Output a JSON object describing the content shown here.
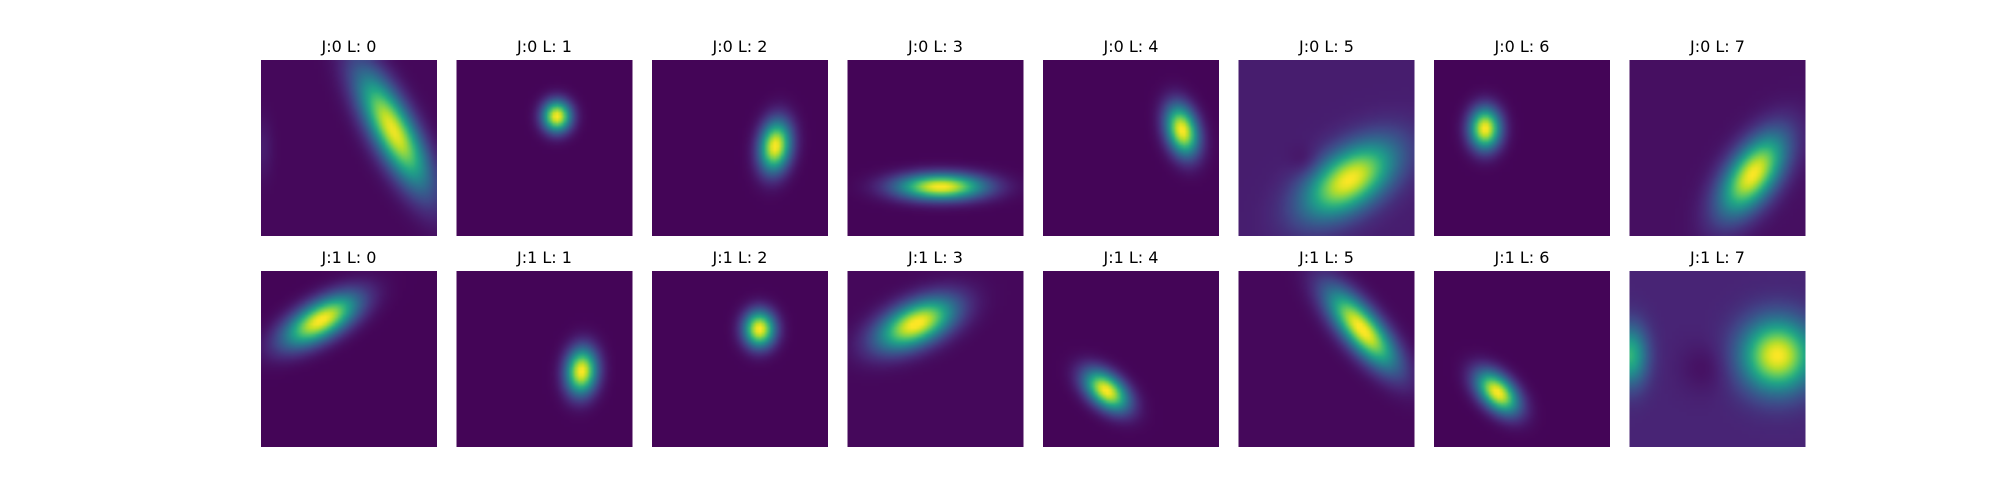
{
  "chart_data": {
    "type": "heatmap",
    "colormap": "viridis",
    "axes_visible": false,
    "rows": 2,
    "cols": 8,
    "panels": [
      {
        "title": "J:0 L: 0",
        "background": 0.02,
        "blobs": [
          {
            "cx": 0.75,
            "cy": 0.4,
            "sx": 0.08,
            "sy": 0.25,
            "angle": -28,
            "amp": 0.96
          },
          {
            "cx": 0.01,
            "cy": 0.5,
            "sx": 0.04,
            "sy": 0.12,
            "angle": 0,
            "amp": 0.06
          }
        ]
      },
      {
        "title": "J:0 L: 1",
        "background": 0.01,
        "blobs": [
          {
            "cx": 0.57,
            "cy": 0.32,
            "sx": 0.055,
            "sy": 0.06,
            "angle": 0,
            "amp": 1.0
          }
        ]
      },
      {
        "title": "J:0 L: 2",
        "background": 0.01,
        "blobs": [
          {
            "cx": 0.7,
            "cy": 0.49,
            "sx": 0.06,
            "sy": 0.1,
            "angle": 8,
            "amp": 1.0
          }
        ]
      },
      {
        "title": "J:0 L: 3",
        "background": 0.01,
        "blobs": [
          {
            "cx": 0.53,
            "cy": 0.72,
            "sx": 0.17,
            "sy": 0.05,
            "angle": 0,
            "amp": 1.0
          }
        ]
      },
      {
        "title": "J:0 L: 4",
        "background": 0.01,
        "blobs": [
          {
            "cx": 0.79,
            "cy": 0.4,
            "sx": 0.06,
            "sy": 0.1,
            "angle": -15,
            "amp": 1.0
          }
        ]
      },
      {
        "title": "J:0 L: 5",
        "background": 0.08,
        "blobs": [
          {
            "cx": 0.63,
            "cy": 0.68,
            "sx": 0.11,
            "sy": 0.2,
            "angle": 55,
            "amp": 0.92
          },
          {
            "cx": 0.38,
            "cy": 0.58,
            "sx": 0.06,
            "sy": 0.06,
            "angle": 0,
            "amp": -0.06
          }
        ]
      },
      {
        "title": "J:0 L: 6",
        "background": 0.01,
        "blobs": [
          {
            "cx": 0.29,
            "cy": 0.39,
            "sx": 0.06,
            "sy": 0.08,
            "angle": 0,
            "amp": 1.0
          }
        ]
      },
      {
        "title": "J:0 L: 7",
        "background": 0.04,
        "blobs": [
          {
            "cx": 0.7,
            "cy": 0.65,
            "sx": 0.09,
            "sy": 0.18,
            "angle": 35,
            "amp": 0.96
          }
        ]
      },
      {
        "title": "J:1 L: 0",
        "background": 0.01,
        "blobs": [
          {
            "cx": 0.34,
            "cy": 0.28,
            "sx": 0.07,
            "sy": 0.16,
            "angle": 60,
            "amp": 1.0
          }
        ]
      },
      {
        "title": "J:1 L: 1",
        "background": 0.01,
        "blobs": [
          {
            "cx": 0.71,
            "cy": 0.57,
            "sx": 0.06,
            "sy": 0.09,
            "angle": 5,
            "amp": 1.0
          }
        ]
      },
      {
        "title": "J:1 L: 2",
        "background": 0.01,
        "blobs": [
          {
            "cx": 0.61,
            "cy": 0.33,
            "sx": 0.06,
            "sy": 0.07,
            "angle": 0,
            "amp": 1.0
          }
        ]
      },
      {
        "title": "J:1 L: 3",
        "background": 0.02,
        "blobs": [
          {
            "cx": 0.39,
            "cy": 0.3,
            "sx": 0.08,
            "sy": 0.16,
            "angle": 65,
            "amp": 1.0
          }
        ]
      },
      {
        "title": "J:1 L: 4",
        "background": 0.01,
        "blobs": [
          {
            "cx": 0.36,
            "cy": 0.68,
            "sx": 0.06,
            "sy": 0.1,
            "angle": -50,
            "amp": 1.0
          }
        ]
      },
      {
        "title": "J:1 L: 5",
        "background": 0.02,
        "blobs": [
          {
            "cx": 0.7,
            "cy": 0.33,
            "sx": 0.07,
            "sy": 0.19,
            "angle": -40,
            "amp": 1.0
          }
        ]
      },
      {
        "title": "J:1 L: 6",
        "background": 0.01,
        "blobs": [
          {
            "cx": 0.36,
            "cy": 0.69,
            "sx": 0.06,
            "sy": 0.1,
            "angle": -45,
            "amp": 1.0
          }
        ]
      },
      {
        "title": "J:1 L: 7",
        "background": 0.1,
        "blobs": [
          {
            "cx": 0.84,
            "cy": 0.48,
            "sx": 0.14,
            "sy": 0.14,
            "angle": 0,
            "amp": 0.9
          },
          {
            "cx": 0.0,
            "cy": 0.48,
            "sx": 0.07,
            "sy": 0.12,
            "angle": 0,
            "amp": 0.55
          },
          {
            "cx": 0.43,
            "cy": 0.55,
            "sx": 0.1,
            "sy": 0.1,
            "angle": 0,
            "amp": -0.06
          }
        ]
      }
    ]
  }
}
